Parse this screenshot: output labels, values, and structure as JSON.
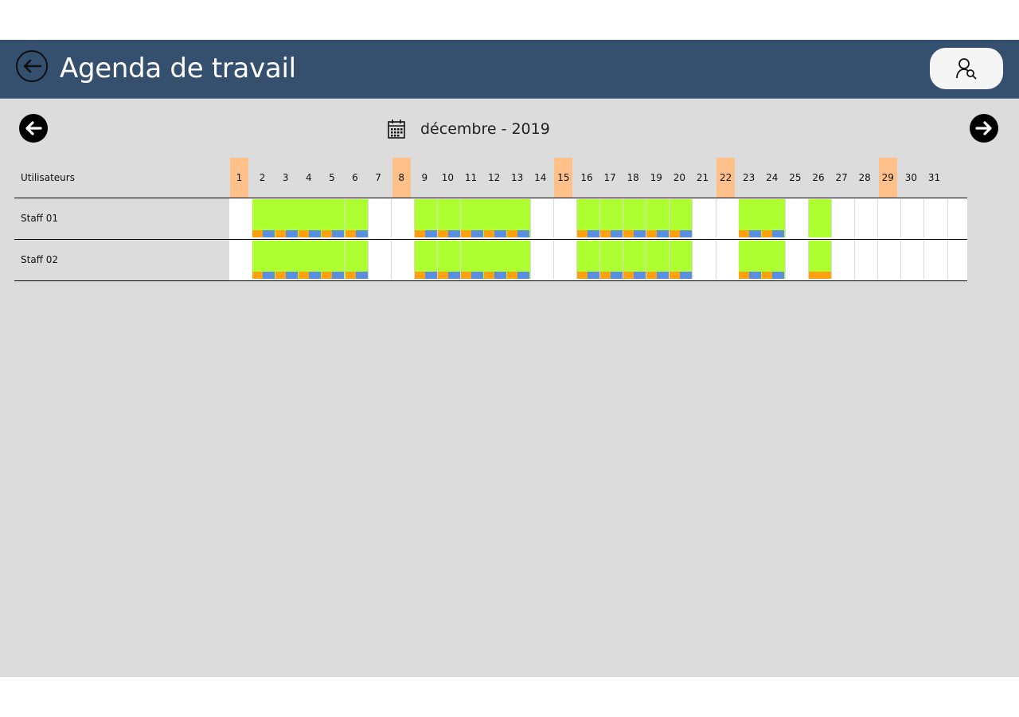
{
  "header": {
    "title": "Agenda de travail",
    "back_icon": "arrow-left-icon",
    "user_icon": "user-search-icon"
  },
  "navigation": {
    "prev_icon": "arrow-left-circle-icon",
    "next_icon": "arrow-right-circle-icon",
    "calendar_icon": "calendar-icon",
    "month_label": "décembre - 2019"
  },
  "colors": {
    "header_bg": "#354f6f",
    "content_bg": "#dcdcdc",
    "weekend_highlight": "#ffc08a",
    "work_day": "#adff2f",
    "segment_orange": "#ff9f12",
    "segment_blue": "#5a8fe0"
  },
  "grid": {
    "users_label": "Utilisateurs",
    "days": [
      "1",
      "2",
      "3",
      "4",
      "5",
      "6",
      "7",
      "8",
      "9",
      "10",
      "11",
      "12",
      "13",
      "14",
      "15",
      "16",
      "17",
      "18",
      "19",
      "20",
      "21",
      "22",
      "23",
      "24",
      "25",
      "26",
      "27",
      "28",
      "29",
      "30",
      "31"
    ],
    "highlighted_days": [
      1,
      8,
      15,
      22,
      29
    ],
    "staff": [
      {
        "name": "Staff 01",
        "work_days": [
          2,
          3,
          4,
          5,
          6,
          9,
          10,
          11,
          12,
          13,
          16,
          17,
          18,
          19,
          20,
          23,
          24,
          26
        ],
        "orange_blue_days": [
          2,
          3,
          4,
          5,
          6,
          9,
          10,
          11,
          12,
          13,
          16,
          17,
          18,
          19,
          20,
          23,
          24
        ],
        "orange_full_days": []
      },
      {
        "name": "Staff 02",
        "work_days": [
          2,
          3,
          4,
          5,
          6,
          9,
          10,
          11,
          12,
          13,
          16,
          17,
          18,
          19,
          20,
          23,
          24,
          26
        ],
        "orange_blue_days": [
          2,
          3,
          4,
          5,
          6,
          9,
          10,
          11,
          12,
          13,
          16,
          17,
          18,
          19,
          20,
          23,
          24
        ],
        "orange_full_days": [
          26
        ]
      }
    ]
  }
}
